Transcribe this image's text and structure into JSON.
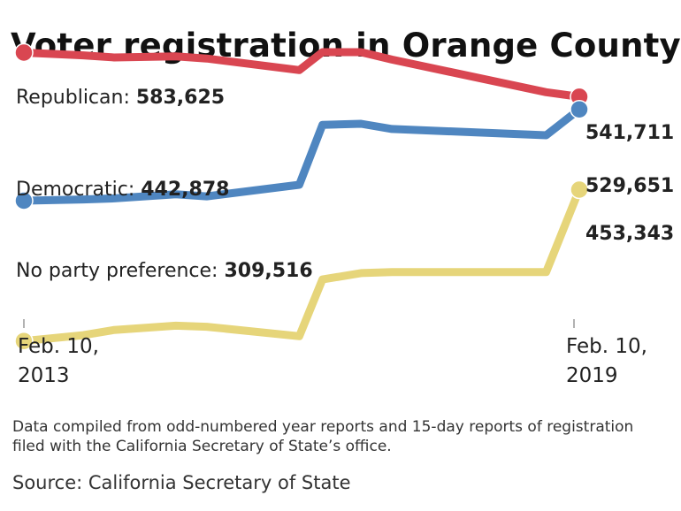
{
  "chart_data": {
    "type": "line",
    "title": "Voter registration in Orange County",
    "x": [
      "2013-02-10",
      "2013-10",
      "2014-02",
      "2014-10",
      "2015-02",
      "2016-02",
      "2016-05",
      "2016-10",
      "2017-02",
      "2018-10",
      "2019-02-10"
    ],
    "x_tick_labels": [
      {
        "line1": "Feb. 10,",
        "line2": "2013"
      },
      {
        "line1": "Feb. 10,",
        "line2": "2019"
      }
    ],
    "series": [
      {
        "name": "Republican",
        "label_text": "Republican: ",
        "start_value_text": "583,625",
        "end_value_text": "541,711",
        "color": "#d94651",
        "values": [
          583625,
          581000,
          579000,
          580000,
          578000,
          567000,
          584000,
          584000,
          577000,
          546000,
          541711
        ]
      },
      {
        "name": "Democratic",
        "label_text": "Democratic: ",
        "start_value_text": "442,878",
        "end_value_text": "529,651",
        "color": "#4f86c0",
        "values": [
          442878,
          444000,
          445000,
          449000,
          447000,
          458000,
          515000,
          516000,
          511000,
          505000,
          529651
        ]
      },
      {
        "name": "No party preference",
        "label_text": "No party preference: ",
        "start_value_text": "309,516",
        "end_value_text": "453,343",
        "color": "#e6d57a",
        "values": [
          309516,
          315000,
          320000,
          324000,
          323000,
          314000,
          368000,
          374000,
          375000,
          375000,
          453343
        ]
      }
    ],
    "ylim": [
      300000,
      600000
    ]
  },
  "note": "Data compiled from odd-numbered year reports and 15-day reports of registration filed with the California Secretary of State’s office.",
  "source": "Source: California Secretary of State"
}
